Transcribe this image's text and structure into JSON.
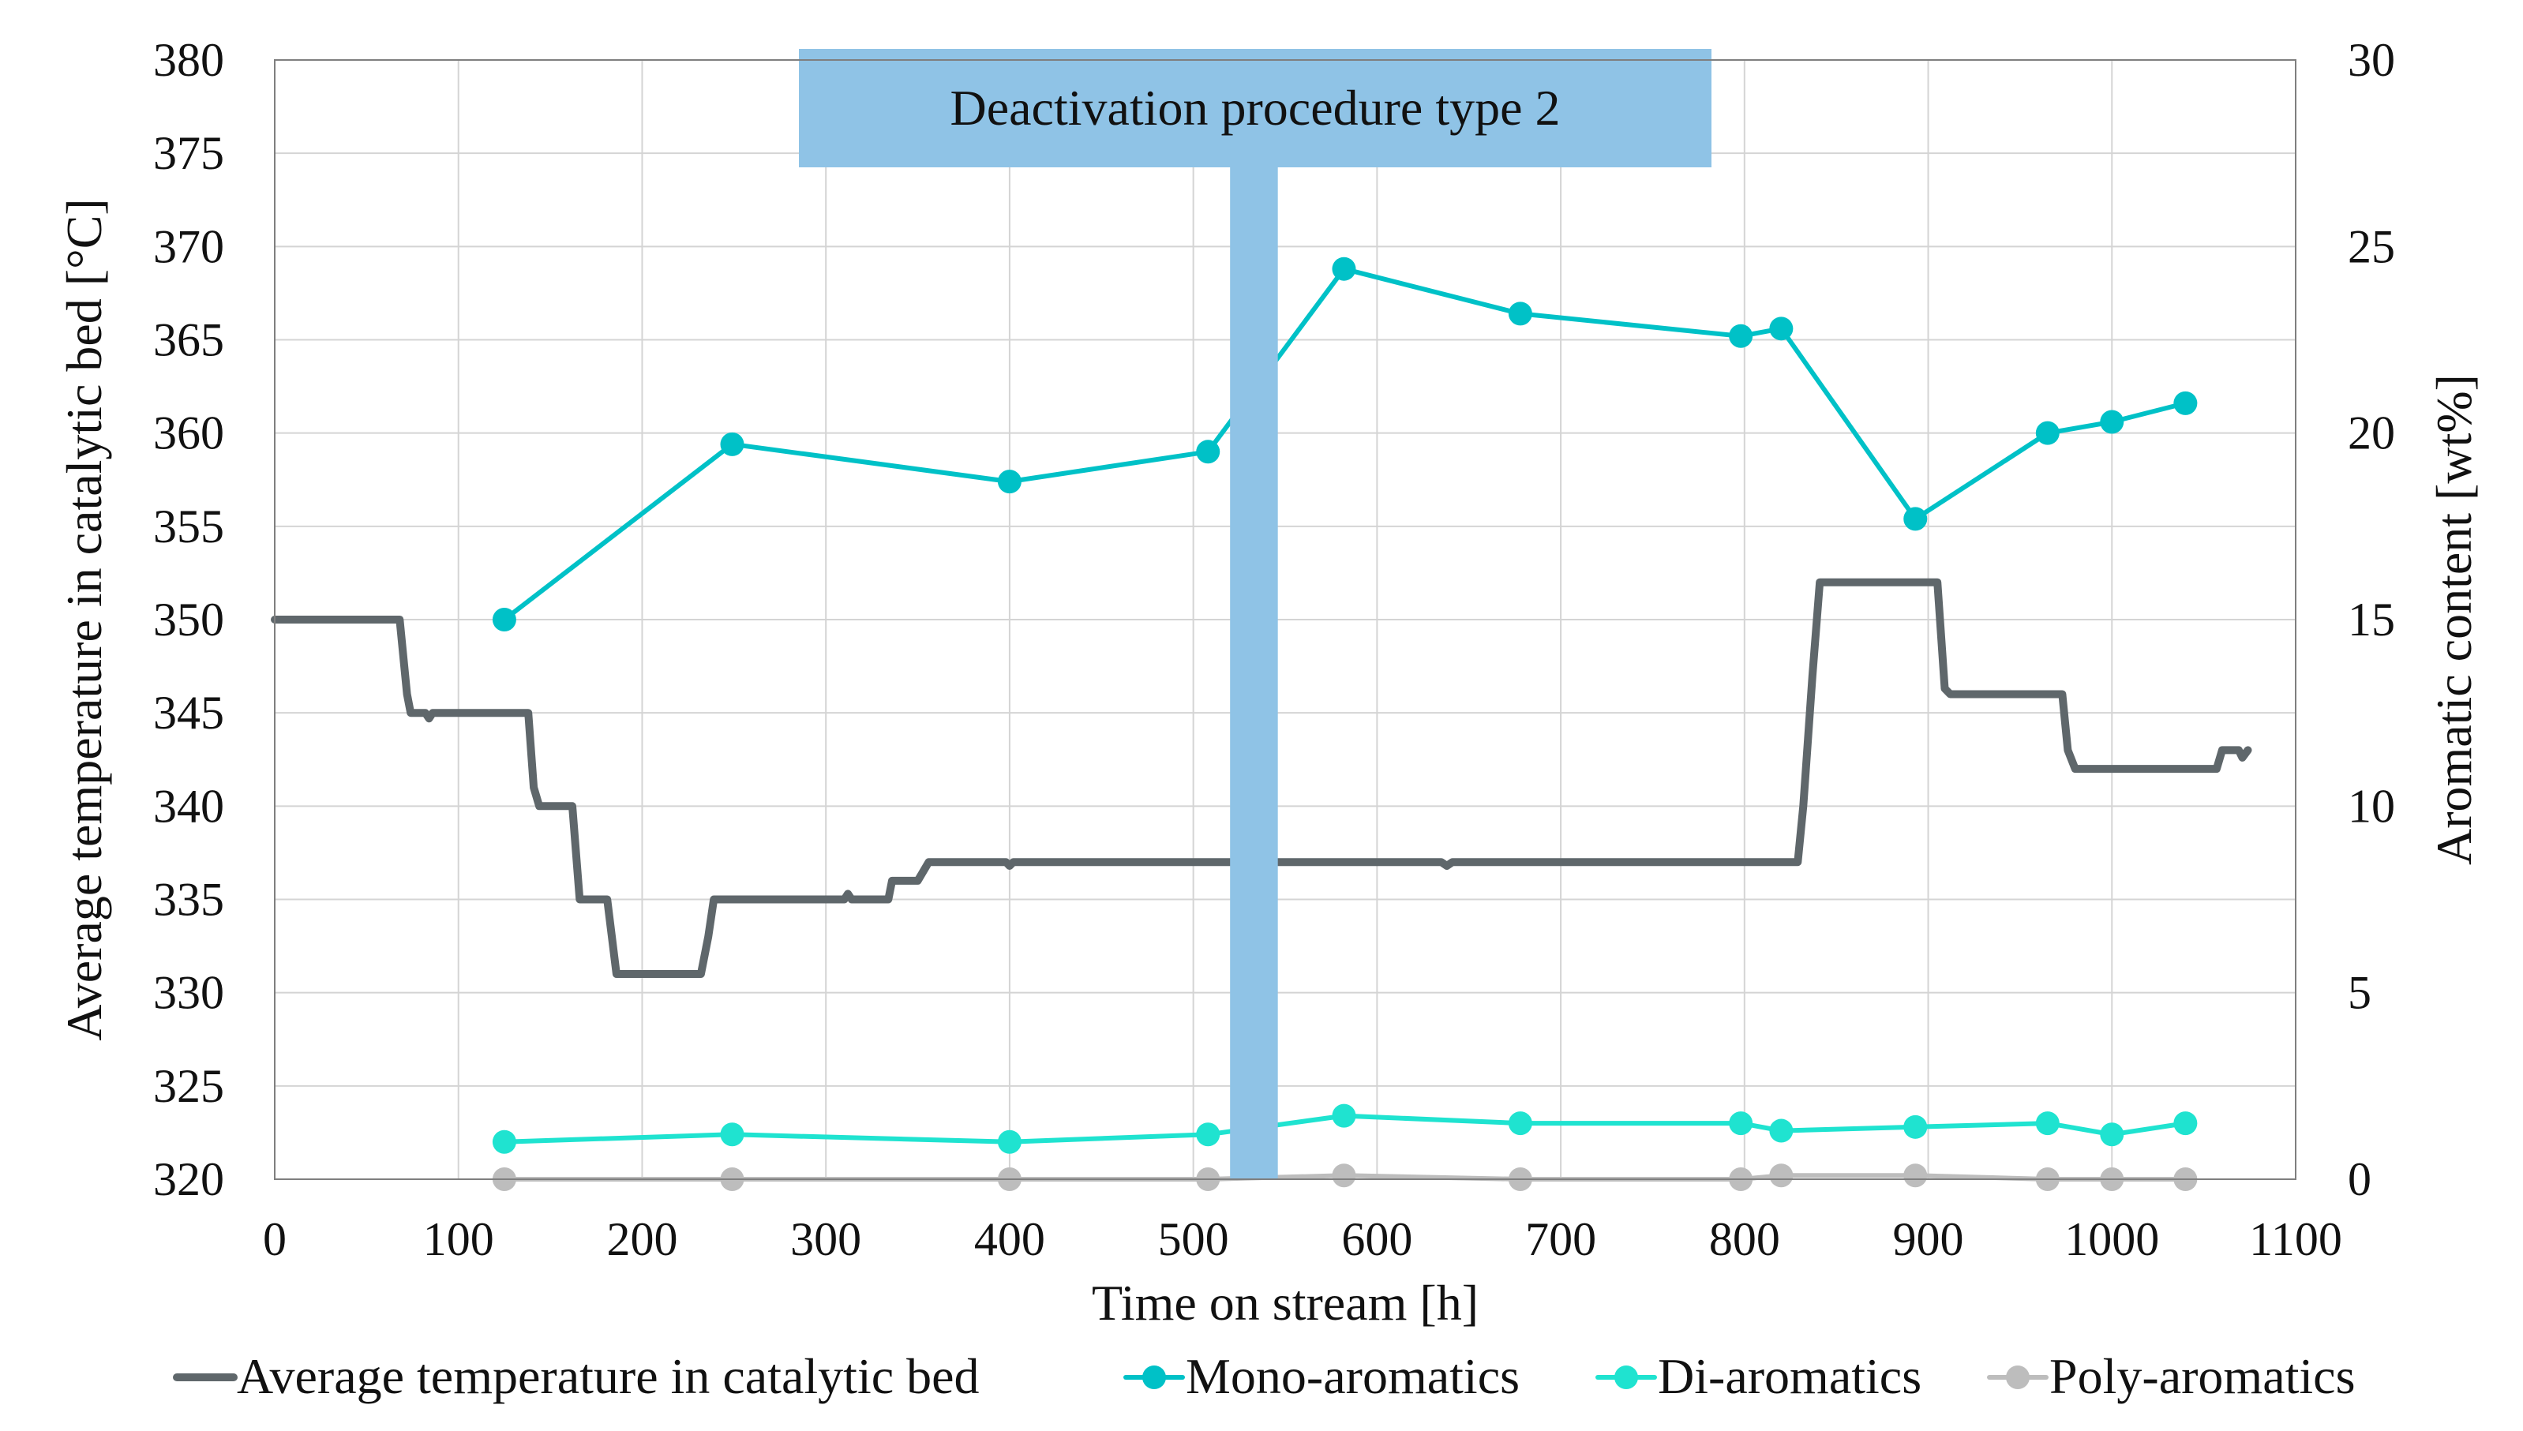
{
  "chart_data": {
    "type": "line",
    "x_axis": {
      "label": "Time on stream [h]",
      "min": 0,
      "max": 1100,
      "ticks": [
        0,
        100,
        200,
        300,
        400,
        500,
        600,
        700,
        800,
        900,
        1000,
        1100
      ]
    },
    "y_left": {
      "label": "Average temperature in catalytic bed [°C]",
      "min": 320,
      "max": 380,
      "ticks": [
        320,
        325,
        330,
        335,
        340,
        345,
        350,
        355,
        360,
        365,
        370,
        375,
        380
      ]
    },
    "y_right": {
      "label": "Aromatic content [wt%]",
      "min": 0,
      "max": 30,
      "ticks": [
        0,
        5,
        10,
        15,
        20,
        25,
        30
      ]
    },
    "grid": true,
    "legend_position": "bottom",
    "annotation": {
      "text": "Deactivation procedure type 2",
      "x_start": 520,
      "x_end": 546,
      "color": "#8fc3e6"
    },
    "series": [
      {
        "name": "Average temperature in catalytic bed",
        "axis": "left",
        "color": "#5f676b",
        "markers": false,
        "points": [
          [
            0,
            350
          ],
          [
            68,
            350
          ],
          [
            72,
            346
          ],
          [
            74,
            345
          ],
          [
            82,
            345
          ],
          [
            84,
            344.7
          ],
          [
            86,
            345
          ],
          [
            138,
            345
          ],
          [
            141,
            341
          ],
          [
            144,
            340
          ],
          [
            162,
            340
          ],
          [
            166,
            335
          ],
          [
            181,
            335
          ],
          [
            186,
            331
          ],
          [
            232,
            331
          ],
          [
            236,
            333
          ],
          [
            239,
            335
          ],
          [
            310,
            335
          ],
          [
            312,
            335.3
          ],
          [
            314,
            335
          ],
          [
            334,
            335
          ],
          [
            336,
            336
          ],
          [
            350,
            336
          ],
          [
            356,
            337
          ],
          [
            398,
            337
          ],
          [
            400,
            336.8
          ],
          [
            402,
            337
          ],
          [
            635,
            337
          ],
          [
            638,
            336.8
          ],
          [
            641,
            337
          ],
          [
            829,
            337
          ],
          [
            832,
            340
          ],
          [
            837,
            347
          ],
          [
            841,
            352
          ],
          [
            905,
            352
          ],
          [
            909,
            346.3
          ],
          [
            912,
            346
          ],
          [
            973,
            346
          ],
          [
            976,
            343
          ],
          [
            980,
            342
          ],
          [
            1057,
            342
          ],
          [
            1060,
            343
          ],
          [
            1069,
            343
          ],
          [
            1071,
            342.6
          ],
          [
            1074,
            343
          ]
        ]
      },
      {
        "name": "Mono-aromatics",
        "axis": "right",
        "color": "#00c1c7",
        "markers": true,
        "points": [
          [
            125,
            15
          ],
          [
            249,
            19.7
          ],
          [
            400,
            18.7
          ],
          [
            508,
            19.5
          ],
          [
            582,
            24.4
          ],
          [
            678,
            23.2
          ],
          [
            798,
            22.6
          ],
          [
            820,
            22.8
          ],
          [
            893,
            17.7
          ],
          [
            965,
            20
          ],
          [
            1000,
            20.3
          ],
          [
            1040,
            20.8
          ]
        ]
      },
      {
        "name": "Di-aromatics",
        "axis": "right",
        "color": "#1fe3d0",
        "markers": true,
        "points": [
          [
            125,
            1
          ],
          [
            249,
            1.2
          ],
          [
            400,
            1
          ],
          [
            508,
            1.2
          ],
          [
            582,
            1.7
          ],
          [
            678,
            1.5
          ],
          [
            798,
            1.5
          ],
          [
            820,
            1.3
          ],
          [
            893,
            1.4
          ],
          [
            965,
            1.5
          ],
          [
            1000,
            1.2
          ],
          [
            1040,
            1.5
          ]
        ]
      },
      {
        "name": "Poly-aromatics",
        "axis": "right",
        "color": "#bdbdbd",
        "markers": true,
        "points": [
          [
            125,
            0
          ],
          [
            249,
            0
          ],
          [
            400,
            0
          ],
          [
            508,
            0
          ],
          [
            582,
            0.1
          ],
          [
            678,
            0
          ],
          [
            798,
            0
          ],
          [
            820,
            0.1
          ],
          [
            893,
            0.1
          ],
          [
            965,
            0
          ],
          [
            1000,
            0
          ],
          [
            1040,
            0
          ]
        ]
      }
    ]
  }
}
